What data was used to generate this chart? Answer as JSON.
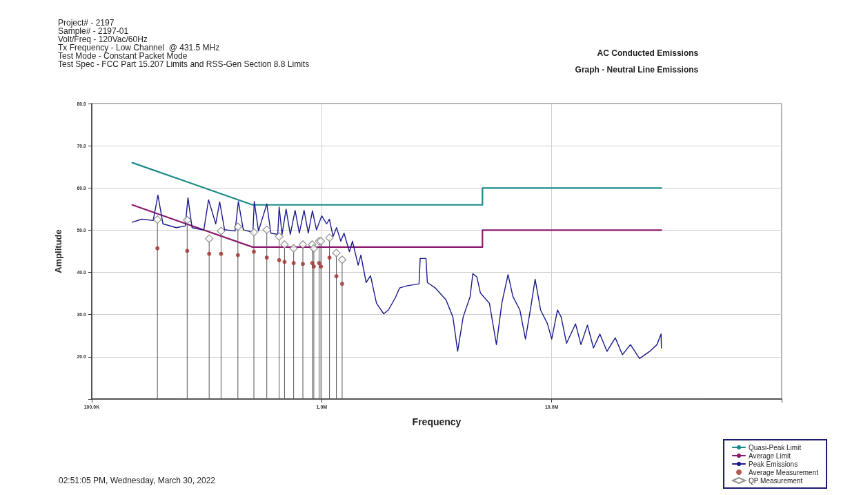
{
  "chart_data": {
    "type": "line",
    "title": "AC Conducted Emissions",
    "subtitle": "Graph - Neutral Line Emissions",
    "xlabel": "Frequency",
    "ylabel": "Amplitude",
    "annotations": [
      "Project# - 2197",
      "Sample# - 2197-01",
      "Volt/Freq - 120Vac/60Hz",
      "Tx Frequency - Low Channel  @ 431.5 MHz",
      "Test Mode - Constant Packet Mode",
      "Test Spec - FCC Part 15.207 Limits and RSS-Gen Section 8.8 Limits",
      "02:51:05 PM, Wednesday, March 30, 2022"
    ],
    "log": "x",
    "xlim": [
      100000,
      100000000
    ],
    "xticks": [
      {
        "value": 100000,
        "label": "100.0K"
      },
      {
        "value": 1000000,
        "label": "1.0M"
      },
      {
        "value": 10000000,
        "label": "10.0M"
      },
      {
        "value": 100000000,
        "label": null
      }
    ],
    "ylim": [
      10,
      80
    ],
    "yticks": [
      {
        "value": 10,
        "label": null
      },
      {
        "value": 20,
        "label": "20.0"
      },
      {
        "value": 30,
        "label": "30.0"
      },
      {
        "value": 40,
        "label": "40.0"
      },
      {
        "value": 50,
        "label": "50.0"
      },
      {
        "value": 60,
        "label": "60.0"
      },
      {
        "value": 70,
        "label": "70.0"
      },
      {
        "value": 80,
        "label": "80.0"
      }
    ],
    "grid": true,
    "legend": "bottom right",
    "series": [
      {
        "name": "Quasi-Peak Limit",
        "marker": "none",
        "color": "#1a8a86",
        "x": [
          150000,
          500000,
          5000000,
          5000000,
          30000000
        ],
        "values": [
          66,
          56,
          56,
          60,
          60
        ]
      },
      {
        "name": "Average Limit",
        "marker": "none",
        "color": "#8b1a6e",
        "x": [
          150000,
          500000,
          5000000,
          5000000,
          30000000
        ],
        "values": [
          56,
          46,
          46,
          50,
          50
        ]
      },
      {
        "name": "Peak Emissions",
        "marker": "none",
        "color": "#1a1a8c",
        "x": [
          150000,
          165000,
          185000,
          194000,
          204000,
          233000,
          255000,
          262000,
          273000,
          307000,
          322000,
          346000,
          360000,
          378000,
          420000,
          434000,
          456000,
          502000,
          509000,
          531000,
          577000,
          601000,
          644000,
          653000,
          672000,
          700000,
          730000,
          766000,
          799000,
          838000,
          874000,
          911000,
          949000,
          1000000,
          1050000,
          1080000,
          1120000,
          1160000,
          1210000,
          1250000,
          1320000,
          1360000,
          1440000,
          1480000,
          1560000,
          1630000,
          1730000,
          1860000,
          1950000,
          2090000,
          2180000,
          2340000,
          2650000,
          2680000,
          2840000,
          2880000,
          3120000,
          3470000,
          3720000,
          3900000,
          4120000,
          4420000,
          4540000,
          4730000,
          4900000,
          5360000,
          5750000,
          6070000,
          6460000,
          6780000,
          7270000,
          7690000,
          8120000,
          8470000,
          8950000,
          9590000,
          10000000,
          10600000,
          11000000,
          11600000,
          12700000,
          13400000,
          14300000,
          15200000,
          16200000,
          17400000,
          18900000,
          20300000,
          22000000,
          24100000,
          26700000,
          28700000,
          29900000,
          30000000
        ],
        "values": [
          51.9,
          52.6,
          52.3,
          58.3,
          51.5,
          50.6,
          51.0,
          57.7,
          50.6,
          50.0,
          57.2,
          51.5,
          56.7,
          50.1,
          49.8,
          56.8,
          50.1,
          49.5,
          56.8,
          49.8,
          56.2,
          49.3,
          49.0,
          55.5,
          49.0,
          55.0,
          49.0,
          54.7,
          49.3,
          54.7,
          49.3,
          54.6,
          50.1,
          53.4,
          51.5,
          52.6,
          48.5,
          50.6,
          47.4,
          49.3,
          44.9,
          47.4,
          41.7,
          44.1,
          37.6,
          39.2,
          32.7,
          30.2,
          31.1,
          34.0,
          36.3,
          36.8,
          37.3,
          43.3,
          43.3,
          37.6,
          36.3,
          33.5,
          29.4,
          21.3,
          29.4,
          34.3,
          39.7,
          38.9,
          35.1,
          32.7,
          22.9,
          32.7,
          39.5,
          34.3,
          31.1,
          24.2,
          31.9,
          38.4,
          31.1,
          27.8,
          24.2,
          31.1,
          29.4,
          23.2,
          27.8,
          22.9,
          27.5,
          22.1,
          25.4,
          21.3,
          24.5,
          20.5,
          22.9,
          19.6,
          21.3,
          22.9,
          25.4,
          22.1
        ]
      },
      {
        "name": "Average Measurement",
        "type": "scatter",
        "marker": "circle",
        "color": "#a0302a",
        "x": [
          193000,
          260000,
          324000,
          365000,
          432000,
          507000,
          577000,
          653000,
          689000,
          755000,
          828000,
          909000,
          924000,
          974000,
          992000,
          1081000,
          1158000,
          1227000
        ],
        "values": [
          45.7,
          45.1,
          44.4,
          44.4,
          44.1,
          44.9,
          43.5,
          42.9,
          42.5,
          42.2,
          42.0,
          42.2,
          41.4,
          42.2,
          41.4,
          43.5,
          39.1,
          37.3
        ]
      },
      {
        "name": "QP Measurement",
        "type": "lollipop",
        "marker": "diamond",
        "color": "#ffffff",
        "x": [
          193000,
          260000,
          324000,
          365000,
          432000,
          507000,
          577000,
          653000,
          689000,
          755000,
          828000,
          909000,
          924000,
          974000,
          992000,
          1081000,
          1158000,
          1227000
        ],
        "values": [
          52.5,
          52.4,
          48.0,
          49.8,
          50.8,
          49.5,
          50.1,
          48.5,
          46.6,
          45.7,
          46.6,
          46.6,
          45.7,
          47.4,
          47.4,
          48.2,
          44.6,
          43.0
        ]
      }
    ]
  }
}
